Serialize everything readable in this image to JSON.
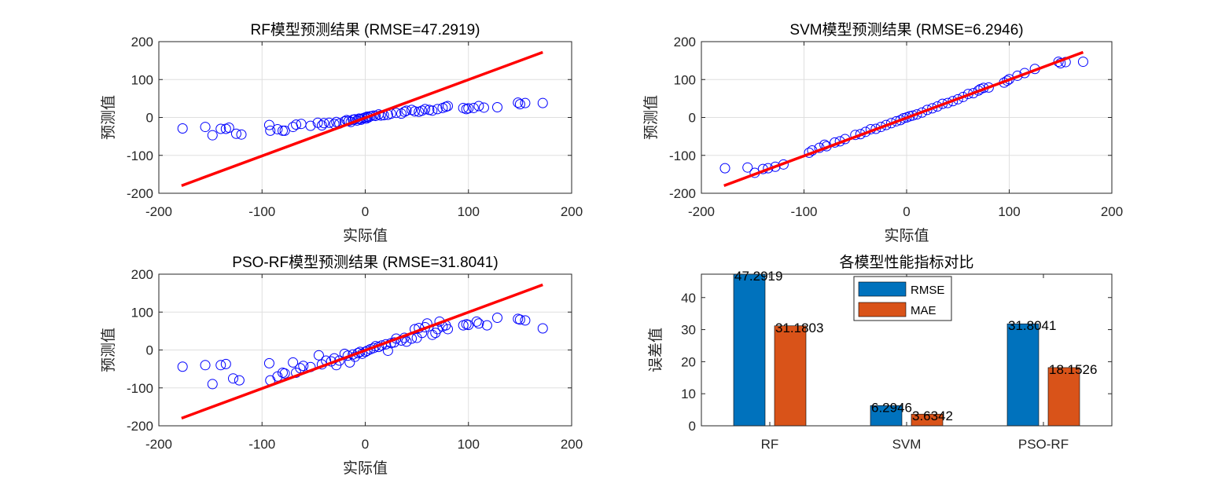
{
  "colors": {
    "axis": "#262626",
    "grid": "#dfdfdf",
    "marker": "#0000ff",
    "fit_line": "#ff0000",
    "rmse_bar": "#0072bd",
    "mae_bar": "#d95319"
  },
  "chart_data": [
    {
      "type": "scatter",
      "title": "RF模型预测结果 (RMSE=47.2919)",
      "xlabel": "实际值",
      "ylabel": "预测值",
      "xlim": [
        -200,
        200
      ],
      "ylim": [
        -200,
        200
      ],
      "xticks": [
        -200,
        -100,
        0,
        100,
        200
      ],
      "yticks": [
        -200,
        -100,
        0,
        100,
        200
      ],
      "line": {
        "x": [
          -178,
          172
        ],
        "y": [
          -180,
          172
        ]
      },
      "points": [
        [
          -177,
          -29
        ],
        [
          -155,
          -25
        ],
        [
          -148,
          -47
        ],
        [
          -140,
          -30
        ],
        [
          -135,
          -30
        ],
        [
          -132,
          -27
        ],
        [
          -125,
          -43
        ],
        [
          -120,
          -45
        ],
        [
          -93,
          -20
        ],
        [
          -92,
          -35
        ],
        [
          -85,
          -31
        ],
        [
          -80,
          -35
        ],
        [
          -78,
          -35
        ],
        [
          -70,
          -25
        ],
        [
          -67,
          -19
        ],
        [
          -62,
          -17
        ],
        [
          -53,
          -22
        ],
        [
          -46,
          -14
        ],
        [
          -42,
          -21
        ],
        [
          -40,
          -15
        ],
        [
          -35,
          -14
        ],
        [
          -30,
          -17
        ],
        [
          -28,
          -12
        ],
        [
          -25,
          -16
        ],
        [
          -20,
          -10
        ],
        [
          -18,
          -7
        ],
        [
          -16,
          -9
        ],
        [
          -14,
          -12
        ],
        [
          -12,
          -6
        ],
        [
          -10,
          -5
        ],
        [
          -8,
          -8
        ],
        [
          -6,
          -3
        ],
        [
          -5,
          -4
        ],
        [
          -4,
          -6
        ],
        [
          -2,
          -2
        ],
        [
          0,
          0
        ],
        [
          1,
          -3
        ],
        [
          2,
          2
        ],
        [
          3,
          0
        ],
        [
          5,
          3
        ],
        [
          8,
          5
        ],
        [
          10,
          4
        ],
        [
          13,
          8
        ],
        [
          15,
          5
        ],
        [
          18,
          6
        ],
        [
          22,
          7
        ],
        [
          25,
          10
        ],
        [
          30,
          12
        ],
        [
          35,
          10
        ],
        [
          38,
          15
        ],
        [
          40,
          18
        ],
        [
          45,
          20
        ],
        [
          48,
          16
        ],
        [
          52,
          15
        ],
        [
          55,
          18
        ],
        [
          58,
          22
        ],
        [
          62,
          20
        ],
        [
          65,
          18
        ],
        [
          70,
          22
        ],
        [
          75,
          25
        ],
        [
          78,
          28
        ],
        [
          80,
          30
        ],
        [
          95,
          25
        ],
        [
          98,
          22
        ],
        [
          100,
          24
        ],
        [
          105,
          25
        ],
        [
          110,
          30
        ],
        [
          115,
          26
        ],
        [
          128,
          27
        ],
        [
          148,
          39
        ],
        [
          150,
          35
        ],
        [
          155,
          38
        ],
        [
          172,
          38
        ]
      ]
    },
    {
      "type": "scatter",
      "title": "SVM模型预测结果 (RMSE=6.2946)",
      "xlabel": "实际值",
      "ylabel": "预测值",
      "xlim": [
        -200,
        200
      ],
      "ylim": [
        -200,
        200
      ],
      "xticks": [
        -200,
        -100,
        0,
        100,
        200
      ],
      "yticks": [
        -200,
        -100,
        0,
        100,
        200
      ],
      "line": {
        "x": [
          -178,
          172
        ],
        "y": [
          -180,
          172
        ]
      },
      "points": [
        [
          -177,
          -134
        ],
        [
          -155,
          -132
        ],
        [
          -148,
          -146
        ],
        [
          -140,
          -136
        ],
        [
          -135,
          -134
        ],
        [
          -128,
          -130
        ],
        [
          -120,
          -124
        ],
        [
          -95,
          -93
        ],
        [
          -92,
          -87
        ],
        [
          -85,
          -80
        ],
        [
          -80,
          -72
        ],
        [
          -78,
          -76
        ],
        [
          -70,
          -66
        ],
        [
          -65,
          -63
        ],
        [
          -60,
          -57
        ],
        [
          -50,
          -46
        ],
        [
          -45,
          -44
        ],
        [
          -40,
          -38
        ],
        [
          -35,
          -31
        ],
        [
          -30,
          -30
        ],
        [
          -25,
          -25
        ],
        [
          -20,
          -20
        ],
        [
          -15,
          -15
        ],
        [
          -10,
          -10
        ],
        [
          -6,
          -7
        ],
        [
          -3,
          -2
        ],
        [
          0,
          0
        ],
        [
          3,
          3
        ],
        [
          6,
          5
        ],
        [
          10,
          8
        ],
        [
          15,
          13
        ],
        [
          20,
          20
        ],
        [
          25,
          24
        ],
        [
          30,
          29
        ],
        [
          35,
          36
        ],
        [
          40,
          38
        ],
        [
          45,
          43
        ],
        [
          50,
          48
        ],
        [
          55,
          54
        ],
        [
          60,
          62
        ],
        [
          65,
          64
        ],
        [
          70,
          71
        ],
        [
          72,
          75
        ],
        [
          75,
          78
        ],
        [
          80,
          79
        ],
        [
          95,
          92
        ],
        [
          98,
          97
        ],
        [
          100,
          101
        ],
        [
          108,
          110
        ],
        [
          115,
          117
        ],
        [
          125,
          128
        ],
        [
          148,
          147
        ],
        [
          150,
          143
        ],
        [
          155,
          146
        ],
        [
          172,
          147
        ]
      ]
    },
    {
      "type": "scatter",
      "title": "PSO-RF模型预测结果 (RMSE=31.8041)",
      "xlabel": "实际值",
      "ylabel": "预测值",
      "xlim": [
        -200,
        200
      ],
      "ylim": [
        -200,
        200
      ],
      "xticks": [
        -200,
        -100,
        0,
        100,
        200
      ],
      "yticks": [
        -200,
        -100,
        0,
        100,
        200
      ],
      "line": {
        "x": [
          -178,
          172
        ],
        "y": [
          -180,
          172
        ]
      },
      "points": [
        [
          -177,
          -44
        ],
        [
          -155,
          -40
        ],
        [
          -148,
          -90
        ],
        [
          -140,
          -40
        ],
        [
          -135,
          -37
        ],
        [
          -128,
          -75
        ],
        [
          -122,
          -80
        ],
        [
          -93,
          -35
        ],
        [
          -92,
          -80
        ],
        [
          -85,
          -70
        ],
        [
          -80,
          -60
        ],
        [
          -78,
          -62
        ],
        [
          -70,
          -33
        ],
        [
          -67,
          -60
        ],
        [
          -63,
          -48
        ],
        [
          -60,
          -42
        ],
        [
          -53,
          -45
        ],
        [
          -45,
          -14
        ],
        [
          -42,
          -38
        ],
        [
          -38,
          -28
        ],
        [
          -33,
          -30
        ],
        [
          -30,
          -22
        ],
        [
          -28,
          -40
        ],
        [
          -25,
          -28
        ],
        [
          -20,
          -10
        ],
        [
          -17,
          -15
        ],
        [
          -15,
          -33
        ],
        [
          -12,
          -12
        ],
        [
          -10,
          -18
        ],
        [
          -7,
          -8
        ],
        [
          -5,
          -5
        ],
        [
          -3,
          -10
        ],
        [
          0,
          -5
        ],
        [
          2,
          -2
        ],
        [
          5,
          2
        ],
        [
          8,
          5
        ],
        [
          10,
          10
        ],
        [
          13,
          8
        ],
        [
          16,
          12
        ],
        [
          20,
          15
        ],
        [
          22,
          -2
        ],
        [
          25,
          18
        ],
        [
          28,
          20
        ],
        [
          30,
          30
        ],
        [
          35,
          25
        ],
        [
          38,
          32
        ],
        [
          40,
          22
        ],
        [
          45,
          30
        ],
        [
          48,
          55
        ],
        [
          50,
          32
        ],
        [
          52,
          58
        ],
        [
          55,
          45
        ],
        [
          58,
          60
        ],
        [
          60,
          70
        ],
        [
          65,
          40
        ],
        [
          68,
          45
        ],
        [
          70,
          55
        ],
        [
          72,
          75
        ],
        [
          75,
          62
        ],
        [
          78,
          65
        ],
        [
          80,
          55
        ],
        [
          95,
          65
        ],
        [
          98,
          68
        ],
        [
          100,
          66
        ],
        [
          108,
          75
        ],
        [
          110,
          70
        ],
        [
          118,
          65
        ],
        [
          128,
          85
        ],
        [
          148,
          82
        ],
        [
          150,
          80
        ],
        [
          155,
          78
        ],
        [
          172,
          57
        ]
      ]
    },
    {
      "type": "bar",
      "title": "各模型性能指标对比",
      "ylabel": "误差值",
      "categories": [
        "RF",
        "SVM",
        "PSO-RF"
      ],
      "ylim": [
        0,
        47.2919
      ],
      "yticks": [
        0,
        10,
        20,
        30,
        40
      ],
      "legend_position": "top-center",
      "series": [
        {
          "name": "RMSE",
          "values": [
            47.2919,
            6.2946,
            31.8041
          ],
          "labels": [
            "47.2919",
            "6.2946",
            "31.8041"
          ]
        },
        {
          "name": "MAE",
          "values": [
            31.1803,
            3.6342,
            18.1526
          ],
          "labels": [
            "31.1803",
            "3.6342",
            "18.1526"
          ]
        }
      ]
    }
  ]
}
